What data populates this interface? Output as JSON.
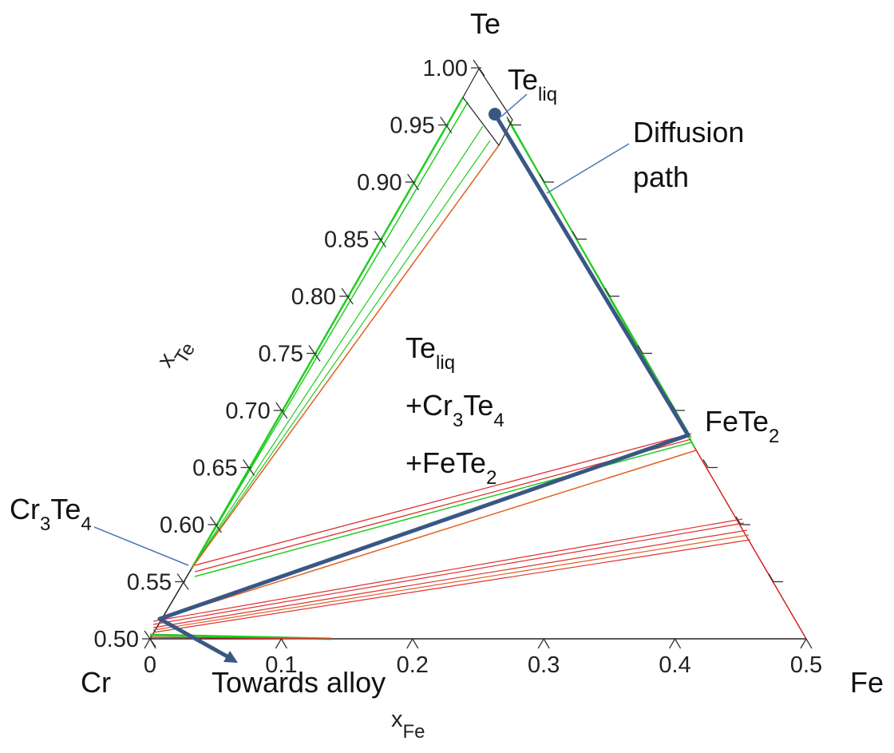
{
  "corners": {
    "top": "Te",
    "left": "Cr",
    "right": "Fe"
  },
  "left_axis": {
    "label": [
      {
        "text": "x"
      },
      {
        "sub": "Te"
      }
    ],
    "ticks": [
      "0.50",
      "0.55",
      "0.60",
      "0.65",
      "0.70",
      "0.75",
      "0.80",
      "0.85",
      "0.90",
      "0.95",
      "1.00"
    ]
  },
  "bottom_axis": {
    "label": [
      {
        "text": "x"
      },
      {
        "sub": "Fe"
      }
    ],
    "ticks": [
      "0",
      "0.1",
      "0.2",
      "0.3",
      "0.4",
      "0.5"
    ]
  },
  "annotations": {
    "te_liq": [
      {
        "text": "Te"
      },
      {
        "sub": "liq"
      }
    ],
    "diffusion_path": [
      "Diffusion",
      "path"
    ],
    "region": [
      [
        {
          "text": "Te"
        },
        {
          "sub": "liq"
        }
      ],
      [
        {
          "text": "+Cr"
        },
        {
          "sub": "3"
        },
        {
          "text": "Te"
        },
        {
          "sub": "4"
        }
      ],
      [
        {
          "text": "+FeTe"
        },
        {
          "sub": "2"
        }
      ]
    ],
    "fete2": [
      {
        "text": "FeTe"
      },
      {
        "sub": "2"
      }
    ],
    "cr3te4": [
      {
        "text": "Cr"
      },
      {
        "sub": "3"
      },
      {
        "text": "Te"
      },
      {
        "sub": "4"
      }
    ],
    "towards_alloy": "Towards alloy"
  }
}
